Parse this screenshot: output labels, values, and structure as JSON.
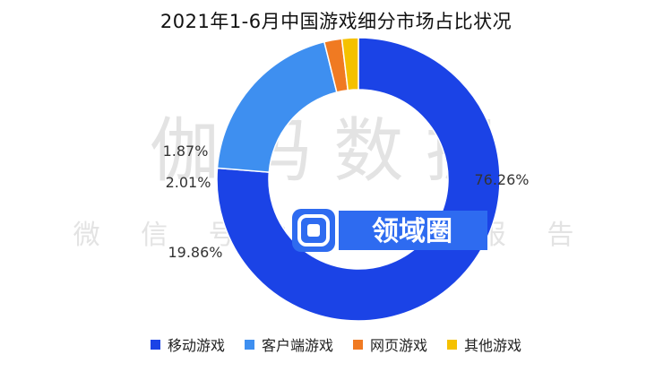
{
  "watermark": {
    "big": "伽 玛 数 据",
    "small": "微 信 号 ： 伽 玛 报 告",
    "logo": "领域圈"
  },
  "chart_data": {
    "type": "pie",
    "donut": true,
    "title": "2021年1-6月中国游戏细分市场占比状况",
    "unit": "%",
    "legend_position": "bottom",
    "slices": [
      {
        "name": "移动游戏",
        "value": 76.26,
        "label": "76.26%",
        "color": "#1b43e6"
      },
      {
        "name": "客户端游戏",
        "value": 19.86,
        "label": "19.86%",
        "color": "#3e8ff0"
      },
      {
        "name": "网页游戏",
        "value": 2.01,
        "label": "2.01%",
        "color": "#f07a22"
      },
      {
        "name": "其他游戏",
        "value": 1.87,
        "label": "1.87%",
        "color": "#f5c100"
      }
    ]
  }
}
